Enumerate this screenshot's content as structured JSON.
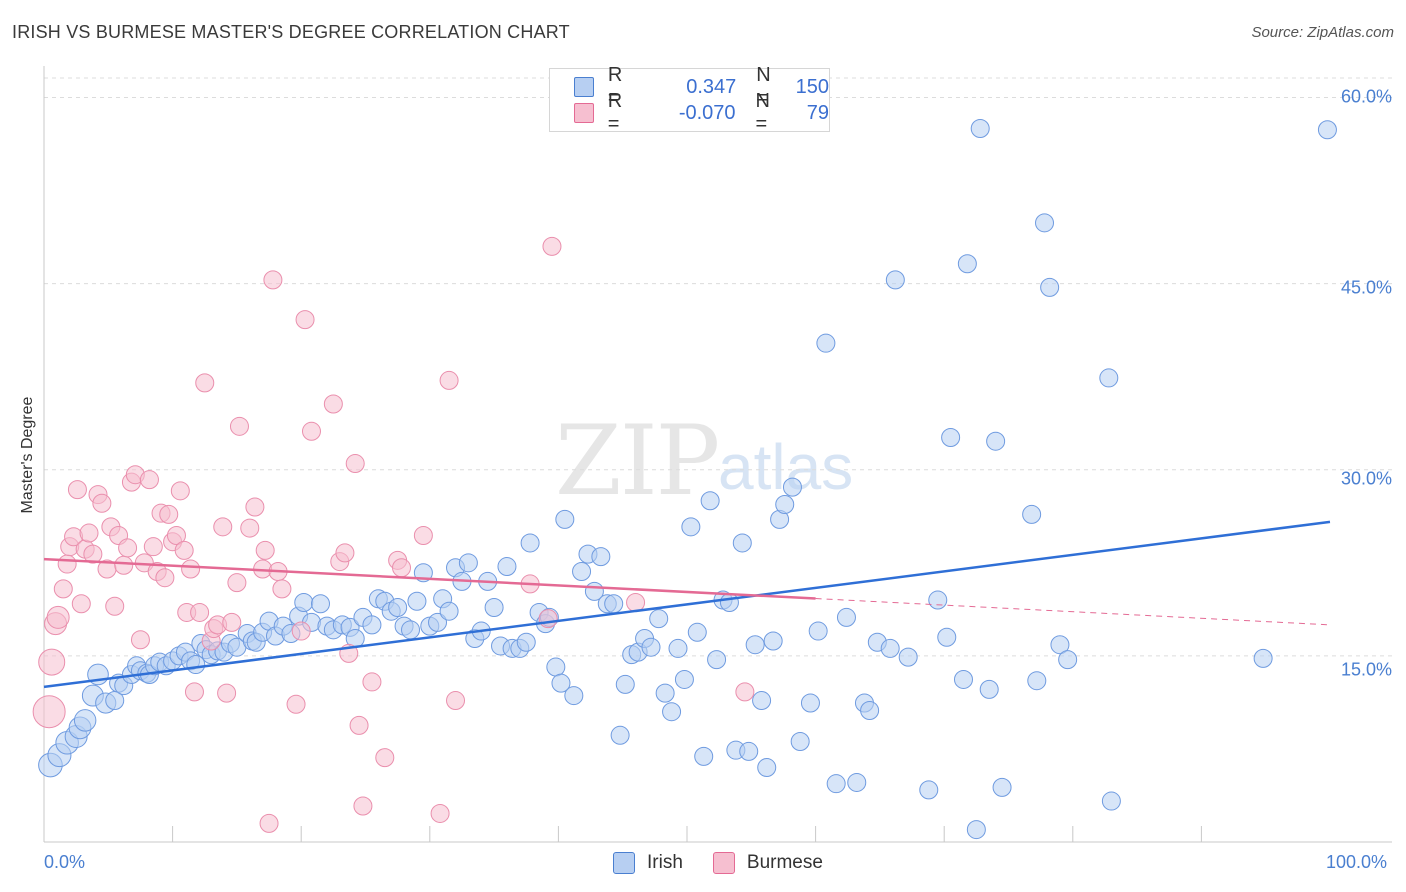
{
  "title": "IRISH VS BURMESE MASTER'S DEGREE CORRELATION CHART",
  "source": "Source: ZipAtlas.com",
  "watermark": {
    "zip": "ZIP",
    "atlas": "atlas"
  },
  "colors": {
    "irish": "#4a7fd0",
    "irish_fill": "#b7cff2",
    "burmese": "#e46a94",
    "burmese_fill": "#f6bfd0",
    "grid": "#dddddd",
    "tick_text": "#4a7fd0"
  },
  "legend_top": {
    "irish": {
      "r_label": "R =",
      "r_value": "0.347",
      "n_label": "N =",
      "n_value": "150"
    },
    "burmese": {
      "r_label": "R =",
      "r_value": "-0.070",
      "n_label": "N =",
      "n_value": "79"
    }
  },
  "legend_bottom": {
    "irish": "Irish",
    "burmese": "Burmese"
  },
  "chart_data": {
    "type": "scatter",
    "title": "IRISH VS BURMESE MASTER'S DEGREE CORRELATION CHART",
    "xlabel": "",
    "ylabel": "Master's Degree",
    "xlim": [
      0,
      100
    ],
    "ylim": [
      0,
      63
    ],
    "x_tick_labels": [
      "0.0%",
      "100.0%"
    ],
    "y_ticks": [
      15,
      30,
      45,
      60
    ],
    "y_tick_labels": [
      "15.0%",
      "30.0%",
      "45.0%",
      "60.0%"
    ],
    "grid": "horizontal dashed",
    "series": [
      {
        "name": "Irish",
        "trend": {
          "x": [
            0,
            100
          ],
          "y": [
            12.5,
            25.8
          ],
          "dashed_from": null
        },
        "points": [
          [
            0.5,
            6.2
          ],
          [
            1.2,
            7.0
          ],
          [
            1.8,
            8.0
          ],
          [
            2.5,
            8.5
          ],
          [
            2.8,
            9.2
          ],
          [
            3.2,
            9.8
          ],
          [
            3.8,
            11.8
          ],
          [
            4.2,
            13.5
          ],
          [
            4.8,
            11.2
          ],
          [
            5.5,
            11.4
          ],
          [
            5.8,
            12.8
          ],
          [
            6.2,
            12.6
          ],
          [
            6.8,
            13.5
          ],
          [
            7.2,
            14.2
          ],
          [
            7.5,
            13.8
          ],
          [
            8.0,
            13.6
          ],
          [
            8.2,
            13.5
          ],
          [
            8.6,
            14.2
          ],
          [
            9.0,
            14.5
          ],
          [
            9.5,
            14.2
          ],
          [
            10.0,
            14.6
          ],
          [
            10.5,
            15.0
          ],
          [
            11.0,
            15.3
          ],
          [
            11.4,
            14.6
          ],
          [
            11.8,
            14.3
          ],
          [
            12.2,
            16.0
          ],
          [
            12.6,
            15.5
          ],
          [
            13.0,
            15.1
          ],
          [
            13.5,
            15.4
          ],
          [
            14.0,
            15.3
          ],
          [
            14.5,
            16.0
          ],
          [
            15.0,
            15.7
          ],
          [
            15.8,
            16.8
          ],
          [
            16.2,
            16.2
          ],
          [
            16.5,
            16.1
          ],
          [
            17.0,
            16.9
          ],
          [
            17.5,
            17.8
          ],
          [
            18.0,
            16.6
          ],
          [
            18.6,
            17.4
          ],
          [
            19.2,
            16.8
          ],
          [
            19.8,
            18.2
          ],
          [
            20.2,
            19.3
          ],
          [
            20.8,
            17.7
          ],
          [
            21.5,
            19.2
          ],
          [
            22.0,
            17.4
          ],
          [
            22.5,
            17.1
          ],
          [
            23.2,
            17.5
          ],
          [
            23.8,
            17.3
          ],
          [
            24.2,
            16.4
          ],
          [
            24.8,
            18.1
          ],
          [
            25.5,
            17.5
          ],
          [
            26.0,
            19.6
          ],
          [
            26.5,
            19.4
          ],
          [
            27.0,
            18.6
          ],
          [
            27.5,
            18.9
          ],
          [
            28.0,
            17.4
          ],
          [
            28.5,
            17.1
          ],
          [
            29.0,
            19.4
          ],
          [
            29.5,
            21.7
          ],
          [
            30.0,
            17.4
          ],
          [
            30.6,
            17.7
          ],
          [
            31.0,
            19.6
          ],
          [
            31.5,
            18.6
          ],
          [
            32.0,
            22.1
          ],
          [
            32.5,
            21.0
          ],
          [
            33.0,
            22.5
          ],
          [
            33.5,
            16.4
          ],
          [
            34.0,
            17.0
          ],
          [
            34.5,
            21.0
          ],
          [
            35.0,
            18.9
          ],
          [
            35.5,
            15.8
          ],
          [
            36.0,
            22.2
          ],
          [
            36.4,
            15.6
          ],
          [
            37.0,
            15.6
          ],
          [
            37.5,
            16.1
          ],
          [
            37.8,
            24.1
          ],
          [
            38.5,
            18.5
          ],
          [
            39.0,
            17.6
          ],
          [
            39.3,
            18.1
          ],
          [
            39.8,
            14.1
          ],
          [
            40.2,
            12.8
          ],
          [
            40.5,
            26.0
          ],
          [
            41.2,
            11.8
          ],
          [
            41.8,
            21.8
          ],
          [
            42.3,
            23.2
          ],
          [
            42.8,
            20.2
          ],
          [
            43.3,
            23.0
          ],
          [
            43.8,
            19.2
          ],
          [
            44.3,
            19.2
          ],
          [
            44.8,
            8.6
          ],
          [
            45.2,
            12.7
          ],
          [
            45.7,
            15.1
          ],
          [
            46.2,
            15.3
          ],
          [
            46.7,
            16.4
          ],
          [
            47.2,
            15.7
          ],
          [
            47.8,
            18.0
          ],
          [
            48.3,
            12.0
          ],
          [
            48.8,
            10.5
          ],
          [
            49.3,
            15.6
          ],
          [
            49.8,
            13.1
          ],
          [
            50.3,
            25.4
          ],
          [
            50.8,
            16.9
          ],
          [
            51.3,
            6.9
          ],
          [
            51.8,
            27.5
          ],
          [
            52.3,
            14.7
          ],
          [
            52.8,
            19.5
          ],
          [
            53.3,
            19.3
          ],
          [
            53.8,
            7.4
          ],
          [
            54.3,
            24.1
          ],
          [
            54.8,
            7.3
          ],
          [
            55.3,
            15.9
          ],
          [
            55.8,
            11.4
          ],
          [
            56.2,
            6.0
          ],
          [
            56.7,
            16.2
          ],
          [
            57.2,
            26.0
          ],
          [
            57.6,
            27.2
          ],
          [
            58.2,
            28.6
          ],
          [
            58.8,
            8.1
          ],
          [
            59.6,
            11.2
          ],
          [
            60.2,
            17.0
          ],
          [
            60.8,
            40.2
          ],
          [
            61.6,
            4.7
          ],
          [
            62.4,
            18.1
          ],
          [
            63.2,
            4.8
          ],
          [
            63.8,
            11.2
          ],
          [
            64.2,
            10.6
          ],
          [
            64.8,
            16.1
          ],
          [
            65.8,
            15.6
          ],
          [
            66.2,
            45.3
          ],
          [
            67.2,
            14.9
          ],
          [
            68.8,
            4.2
          ],
          [
            69.5,
            19.5
          ],
          [
            70.2,
            16.5
          ],
          [
            70.5,
            32.6
          ],
          [
            71.5,
            13.1
          ],
          [
            71.8,
            46.6
          ],
          [
            72.5,
            1.0
          ],
          [
            72.8,
            57.5
          ],
          [
            73.5,
            12.3
          ],
          [
            74.0,
            32.3
          ],
          [
            74.5,
            4.4
          ],
          [
            76.8,
            26.4
          ],
          [
            77.2,
            13.0
          ],
          [
            77.8,
            49.9
          ],
          [
            78.2,
            44.7
          ],
          [
            79.0,
            15.9
          ],
          [
            79.6,
            14.7
          ],
          [
            82.8,
            37.4
          ],
          [
            83.0,
            3.3
          ],
          [
            94.8,
            14.8
          ],
          [
            99.8,
            57.4
          ]
        ],
        "sizes_note": "leftmost points drawn larger"
      },
      {
        "name": "Burmese",
        "trend": {
          "x": [
            0,
            100
          ],
          "y": [
            22.8,
            17.5
          ],
          "dashed_from": 60
        },
        "points": [
          [
            0.4,
            10.5
          ],
          [
            0.6,
            14.5
          ],
          [
            0.9,
            17.6
          ],
          [
            1.1,
            18.1
          ],
          [
            1.5,
            20.4
          ],
          [
            1.8,
            22.4
          ],
          [
            2.0,
            23.8
          ],
          [
            2.3,
            24.6
          ],
          [
            2.6,
            28.4
          ],
          [
            2.9,
            19.2
          ],
          [
            3.2,
            23.6
          ],
          [
            3.5,
            24.9
          ],
          [
            3.8,
            23.2
          ],
          [
            4.2,
            28.0
          ],
          [
            4.5,
            27.3
          ],
          [
            4.9,
            22.0
          ],
          [
            5.2,
            25.4
          ],
          [
            5.5,
            19.0
          ],
          [
            5.8,
            24.7
          ],
          [
            6.2,
            22.3
          ],
          [
            6.5,
            23.7
          ],
          [
            6.8,
            29.0
          ],
          [
            7.1,
            29.6
          ],
          [
            7.5,
            16.3
          ],
          [
            7.8,
            22.5
          ],
          [
            8.2,
            29.2
          ],
          [
            8.5,
            23.8
          ],
          [
            8.8,
            21.8
          ],
          [
            9.1,
            26.5
          ],
          [
            9.4,
            21.3
          ],
          [
            9.7,
            26.4
          ],
          [
            10.0,
            24.2
          ],
          [
            10.3,
            24.7
          ],
          [
            10.6,
            28.3
          ],
          [
            10.9,
            23.5
          ],
          [
            11.1,
            18.5
          ],
          [
            11.4,
            22.0
          ],
          [
            11.7,
            12.1
          ],
          [
            12.1,
            18.5
          ],
          [
            12.5,
            37.0
          ],
          [
            13.0,
            16.2
          ],
          [
            13.2,
            17.2
          ],
          [
            13.5,
            17.5
          ],
          [
            13.9,
            25.4
          ],
          [
            14.2,
            12.0
          ],
          [
            14.6,
            17.7
          ],
          [
            15.0,
            20.9
          ],
          [
            15.2,
            33.5
          ],
          [
            16.0,
            25.3
          ],
          [
            16.4,
            27.0
          ],
          [
            17.0,
            22.0
          ],
          [
            17.2,
            23.5
          ],
          [
            17.5,
            1.5
          ],
          [
            17.8,
            45.3
          ],
          [
            18.2,
            21.8
          ],
          [
            18.5,
            20.4
          ],
          [
            19.6,
            11.1
          ],
          [
            20.0,
            17.0
          ],
          [
            20.3,
            42.1
          ],
          [
            20.8,
            33.1
          ],
          [
            22.5,
            35.3
          ],
          [
            23.0,
            22.6
          ],
          [
            23.4,
            23.3
          ],
          [
            23.7,
            15.2
          ],
          [
            24.2,
            30.5
          ],
          [
            24.5,
            9.4
          ],
          [
            24.8,
            2.9
          ],
          [
            25.5,
            12.9
          ],
          [
            26.5,
            6.8
          ],
          [
            27.5,
            22.7
          ],
          [
            27.8,
            22.1
          ],
          [
            29.5,
            24.7
          ],
          [
            30.8,
            2.3
          ],
          [
            31.5,
            37.2
          ],
          [
            32.0,
            11.4
          ],
          [
            37.8,
            20.8
          ],
          [
            39.2,
            18.0
          ],
          [
            39.5,
            48.0
          ],
          [
            46.0,
            19.3
          ],
          [
            54.5,
            12.1
          ]
        ]
      }
    ]
  }
}
